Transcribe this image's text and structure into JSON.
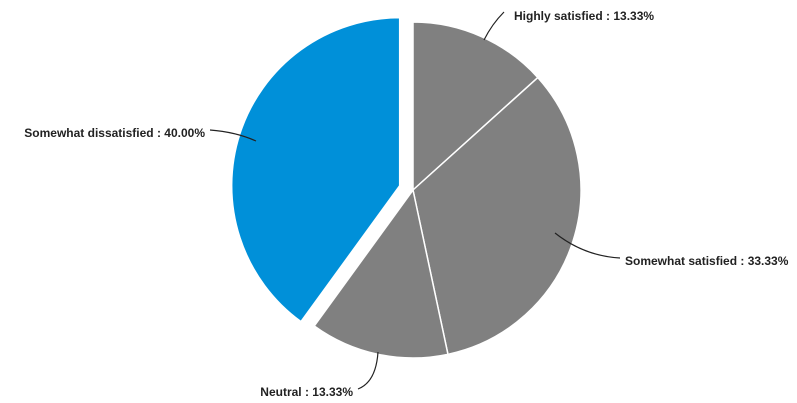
{
  "chart_data": {
    "type": "pie",
    "title": "",
    "slices": [
      {
        "label": "Highly satisfied",
        "value": 13.33,
        "value_text": "13.33%",
        "color": "#808080",
        "exploded": false
      },
      {
        "label": "Somewhat satisfied",
        "value": 33.33,
        "value_text": "33.33%",
        "color": "#808080",
        "exploded": false
      },
      {
        "label": "Neutral",
        "value": 13.33,
        "value_text": "13.33%",
        "color": "#808080",
        "exploded": false
      },
      {
        "label": "Somewhat dissatisfied",
        "value": 40.0,
        "value_text": "40.00%",
        "color": "#0090D9",
        "exploded": true
      }
    ],
    "start_angle_deg": 0,
    "direction": "clockwise",
    "slice_border_color": "#ffffff",
    "label_format": "{label} : {value_text}",
    "legend": "none"
  }
}
